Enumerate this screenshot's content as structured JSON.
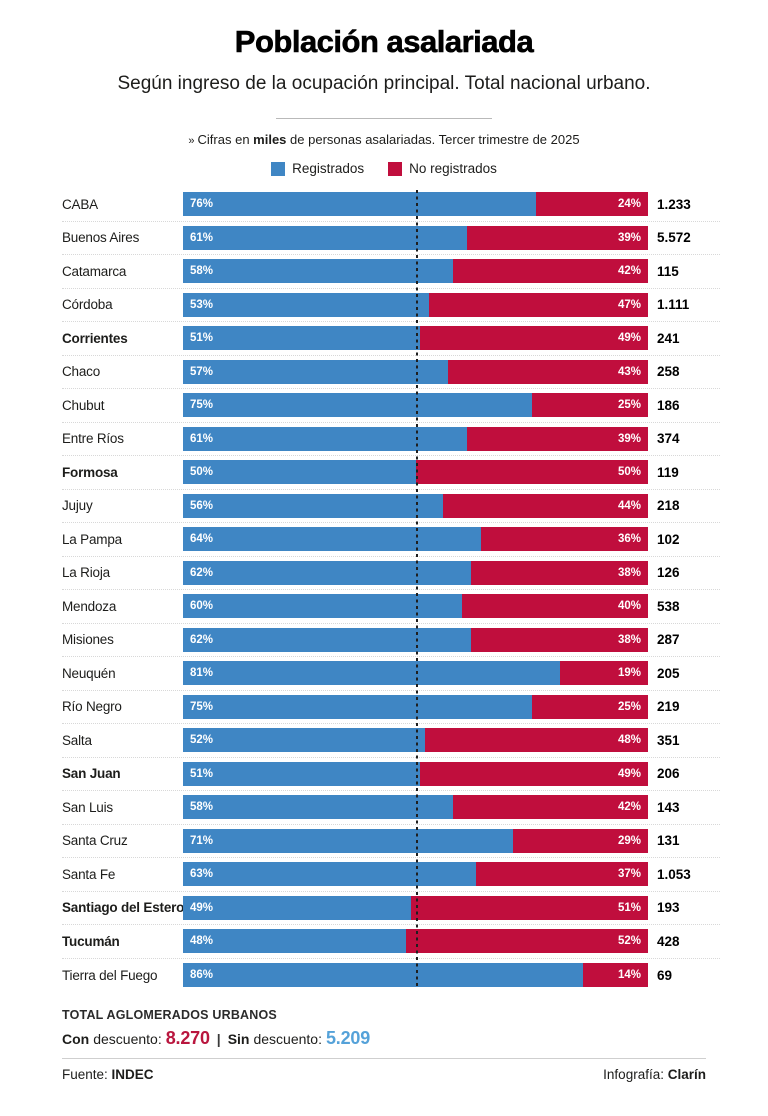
{
  "header": {
    "title": "Población asalariada",
    "subtitle": "Según ingreso de la ocupación principal. Total nacional urbano.",
    "note_bullet": "»",
    "note_prefix": "Cifras en ",
    "note_bold": "miles",
    "note_suffix": " de personas asalariadas. Tercer trimestre de 2025"
  },
  "legend": {
    "registered": "Registrados",
    "no_registered": "No registrados"
  },
  "colors": {
    "registered": "#3f86c4",
    "no_registered": "#c00e3d",
    "total_with_discount": "#b9163e",
    "total_without_discount": "#55a2d9"
  },
  "chart_data": {
    "type": "bar",
    "orientation": "horizontal-stacked",
    "title": "Población asalariada",
    "unit": "percent",
    "xlim": [
      0,
      100
    ],
    "midline_percent": 50,
    "grid": "dotted-row-separators",
    "legend_position": "top-center",
    "categories": [
      "CABA",
      "Buenos Aires",
      "Catamarca",
      "Córdoba",
      "Corrientes",
      "Chaco",
      "Chubut",
      "Entre Ríos",
      "Formosa",
      "Jujuy",
      "La Pampa",
      "La Rioja",
      "Mendoza",
      "Misiones",
      "Neuquén",
      "Río Negro",
      "Salta",
      "San Juan",
      "San Luis",
      "Santa Cruz",
      "Santa Fe",
      "Santiago del Estero",
      "Tucumán",
      "Tierra del Fuego"
    ],
    "series": [
      {
        "name": "Registrados",
        "values": [
          76,
          61,
          58,
          53,
          51,
          57,
          75,
          61,
          50,
          56,
          64,
          62,
          60,
          62,
          81,
          75,
          52,
          51,
          58,
          71,
          63,
          49,
          48,
          86
        ]
      },
      {
        "name": "No registrados",
        "values": [
          24,
          39,
          42,
          47,
          49,
          43,
          25,
          39,
          50,
          44,
          36,
          38,
          40,
          38,
          19,
          25,
          48,
          49,
          42,
          29,
          37,
          51,
          52,
          14
        ]
      }
    ],
    "totals_thousands": [
      "1.233",
      "5.572",
      "115",
      "1.111",
      "241",
      "258",
      "186",
      "374",
      "119",
      "218",
      "102",
      "126",
      "538",
      "287",
      "205",
      "219",
      "351",
      "206",
      "143",
      "131",
      "1.053",
      "193",
      "428",
      "69"
    ],
    "bold_categories": [
      "Corrientes",
      "Formosa",
      "San Juan",
      "Santiago del Estero",
      "Tucumán"
    ]
  },
  "footer": {
    "totals_title": "TOTAL AGLOMERADOS URBANOS",
    "with_label_bold": "Con",
    "with_label_rest": "descuento:",
    "with_value": "8.270",
    "separator": "|",
    "without_label_bold": "Sin",
    "without_label_rest": "descuento:",
    "without_value": "5.209",
    "source_label": "Fuente:",
    "source_value": "INDEC",
    "credit_label": "Infografía:",
    "credit_value": "Clarín"
  }
}
